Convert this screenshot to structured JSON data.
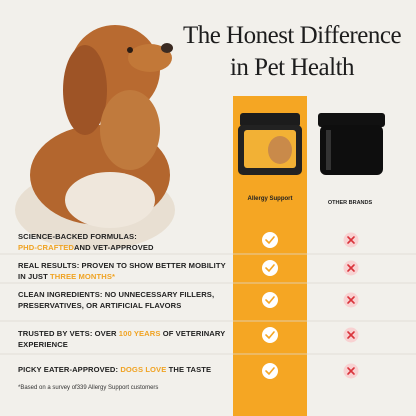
{
  "header": {
    "title": [
      "The Honest Difference",
      "in Pet Health"
    ]
  },
  "columns": {
    "ours": "Allergy Support",
    "theirs": "OTHER BRANDS"
  },
  "rows": [
    {
      "parts": [
        "SCIENCE-BACKED FORMULAS: ",
        "PHD-CRAFTED",
        "AND VET-APPROVED"
      ],
      "highlight": 1
    },
    {
      "parts": [
        "REAL RESULTS: PROVEN TO SHOW BETTER MOBILITY IN JUST ",
        "THREE MONTHS*"
      ],
      "highlight": 1
    },
    {
      "parts": [
        "CLEAN INGREDIENTS: NO UNNECESSARY FILLERS, PRESERVATIVES, OR ARTIFICIAL FLAVORS"
      ]
    },
    {
      "parts": [
        "TRUSTED BY VETS: OVER ",
        "100 YEARS",
        " OF VETERINARY EXPERIENCE"
      ],
      "highlight": 1
    },
    {
      "parts": [
        "PICKY EATER-APPROVED: ",
        "DOGS LOVE",
        " THE TASTE"
      ],
      "highlight": 1
    }
  ],
  "footnote": "*Based on a survey of339 Allergy Support customers"
}
